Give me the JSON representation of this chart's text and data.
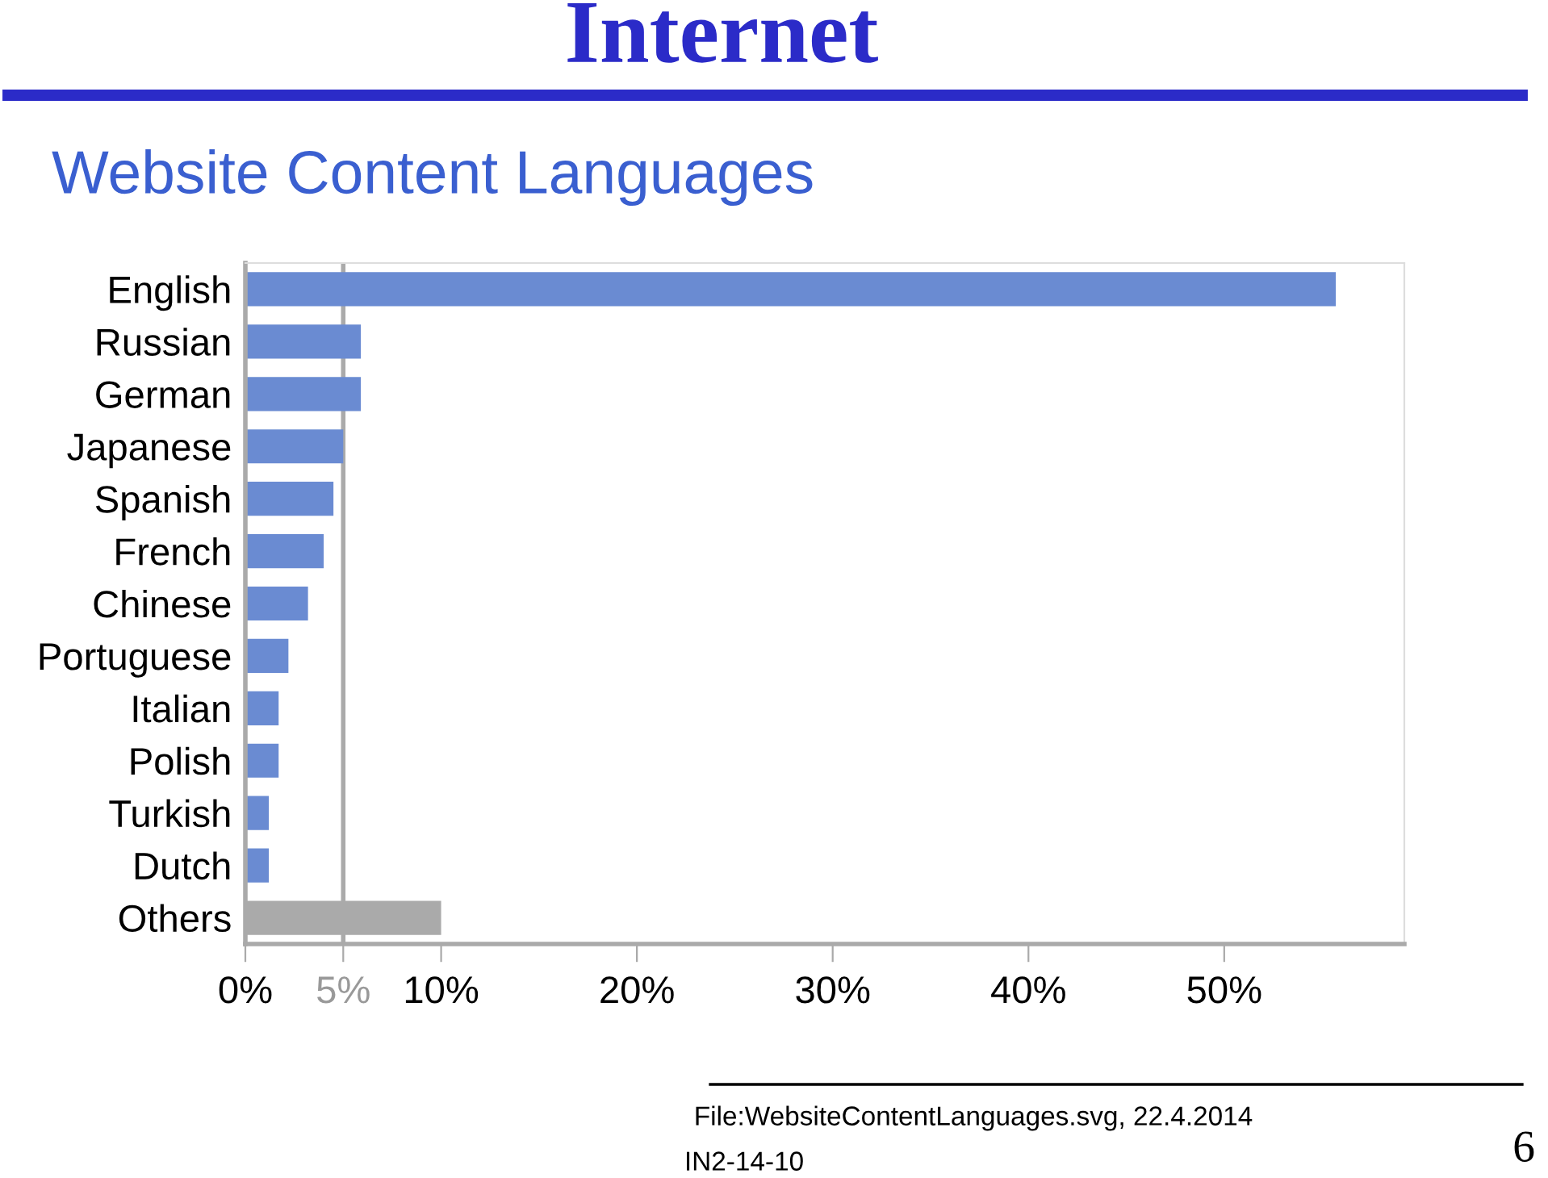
{
  "chart_data": {
    "type": "bar",
    "orientation": "horizontal",
    "title": "Internet",
    "subtitle": "Website Content Languages",
    "categories": [
      "English",
      "Russian",
      "German",
      "Japanese",
      "Spanish",
      "French",
      "Chinese",
      "Portuguese",
      "Italian",
      "Polish",
      "Turkish",
      "Dutch",
      "Others"
    ],
    "values": [
      55.7,
      5.9,
      5.9,
      5.0,
      4.5,
      4.0,
      3.2,
      2.2,
      1.7,
      1.7,
      1.2,
      1.2,
      10.0
    ],
    "colors": [
      "#6a8bd2",
      "#6a8bd2",
      "#6a8bd2",
      "#6a8bd2",
      "#6a8bd2",
      "#6a8bd2",
      "#6a8bd2",
      "#6a8bd2",
      "#6a8bd2",
      "#6a8bd2",
      "#6a8bd2",
      "#6a8bd2",
      "#aaaaaa"
    ],
    "xlim": [
      0,
      59.2
    ],
    "xticks": [
      {
        "value": 0,
        "label": "0%"
      },
      {
        "value": 5,
        "label": "5%"
      },
      {
        "value": 10,
        "label": "10%"
      },
      {
        "value": 20,
        "label": "20%"
      },
      {
        "value": 30,
        "label": "30%"
      },
      {
        "value": 40,
        "label": "40%"
      },
      {
        "value": 50,
        "label": "50%"
      }
    ],
    "ref_lines": [
      {
        "axis": "x",
        "value": 5,
        "color": "#aaaaaa"
      }
    ],
    "grid": false,
    "legend": false,
    "annotations": [
      "File:WebsiteContentLanguages.svg, 22.4.2014",
      "IN2-14-10",
      "6"
    ]
  }
}
